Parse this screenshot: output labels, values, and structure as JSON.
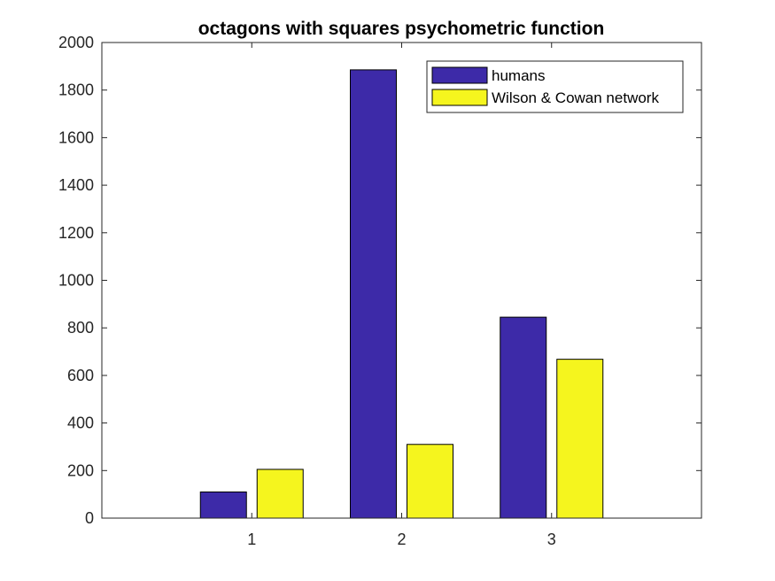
{
  "chart_data": {
    "type": "bar",
    "title": "octagons with squares psychometric function",
    "xlabel": "",
    "ylabel": "",
    "categories": [
      "1",
      "2",
      "3"
    ],
    "ylim": [
      0,
      2000
    ],
    "yticks": [
      0,
      200,
      400,
      600,
      800,
      1000,
      1200,
      1400,
      1600,
      1800,
      2000
    ],
    "series": [
      {
        "name": "humans",
        "color": "#3d2aa8",
        "values": [
          110,
          1885,
          845
        ]
      },
      {
        "name": "Wilson & Cowan network",
        "color": "#f5f51e",
        "values": [
          205,
          310,
          668
        ]
      }
    ],
    "legend_position": "top-right",
    "grid": false
  }
}
